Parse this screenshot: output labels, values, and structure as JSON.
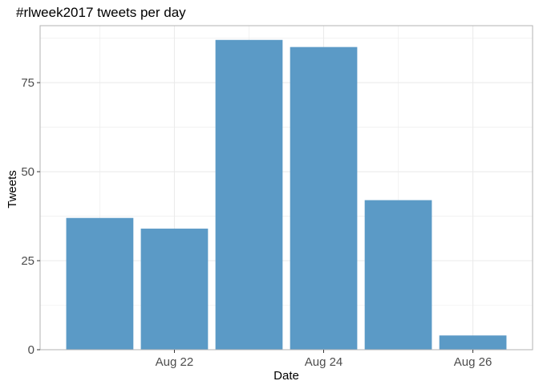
{
  "chart_data": {
    "type": "bar",
    "title": "#rlweek2017 tweets per day",
    "xlabel": "Date",
    "ylabel": "Tweets",
    "x_type": "date",
    "dates": [
      "2017-08-21",
      "2017-08-22",
      "2017-08-23",
      "2017-08-24",
      "2017-08-25",
      "2017-08-26"
    ],
    "values": [
      37,
      34,
      87,
      85,
      42,
      4
    ],
    "x_ticks": [
      {
        "date": "2017-08-22",
        "label": "Aug 22"
      },
      {
        "date": "2017-08-24",
        "label": "Aug 24"
      },
      {
        "date": "2017-08-26",
        "label": "Aug 26"
      }
    ],
    "y_ticks": [
      0,
      25,
      50,
      75
    ],
    "ylim": [
      0,
      91
    ],
    "grid": true,
    "bar_color": "#5b9ac6",
    "grid_color": "#ebebeb",
    "panel_border_color": "#b3b3b3"
  }
}
